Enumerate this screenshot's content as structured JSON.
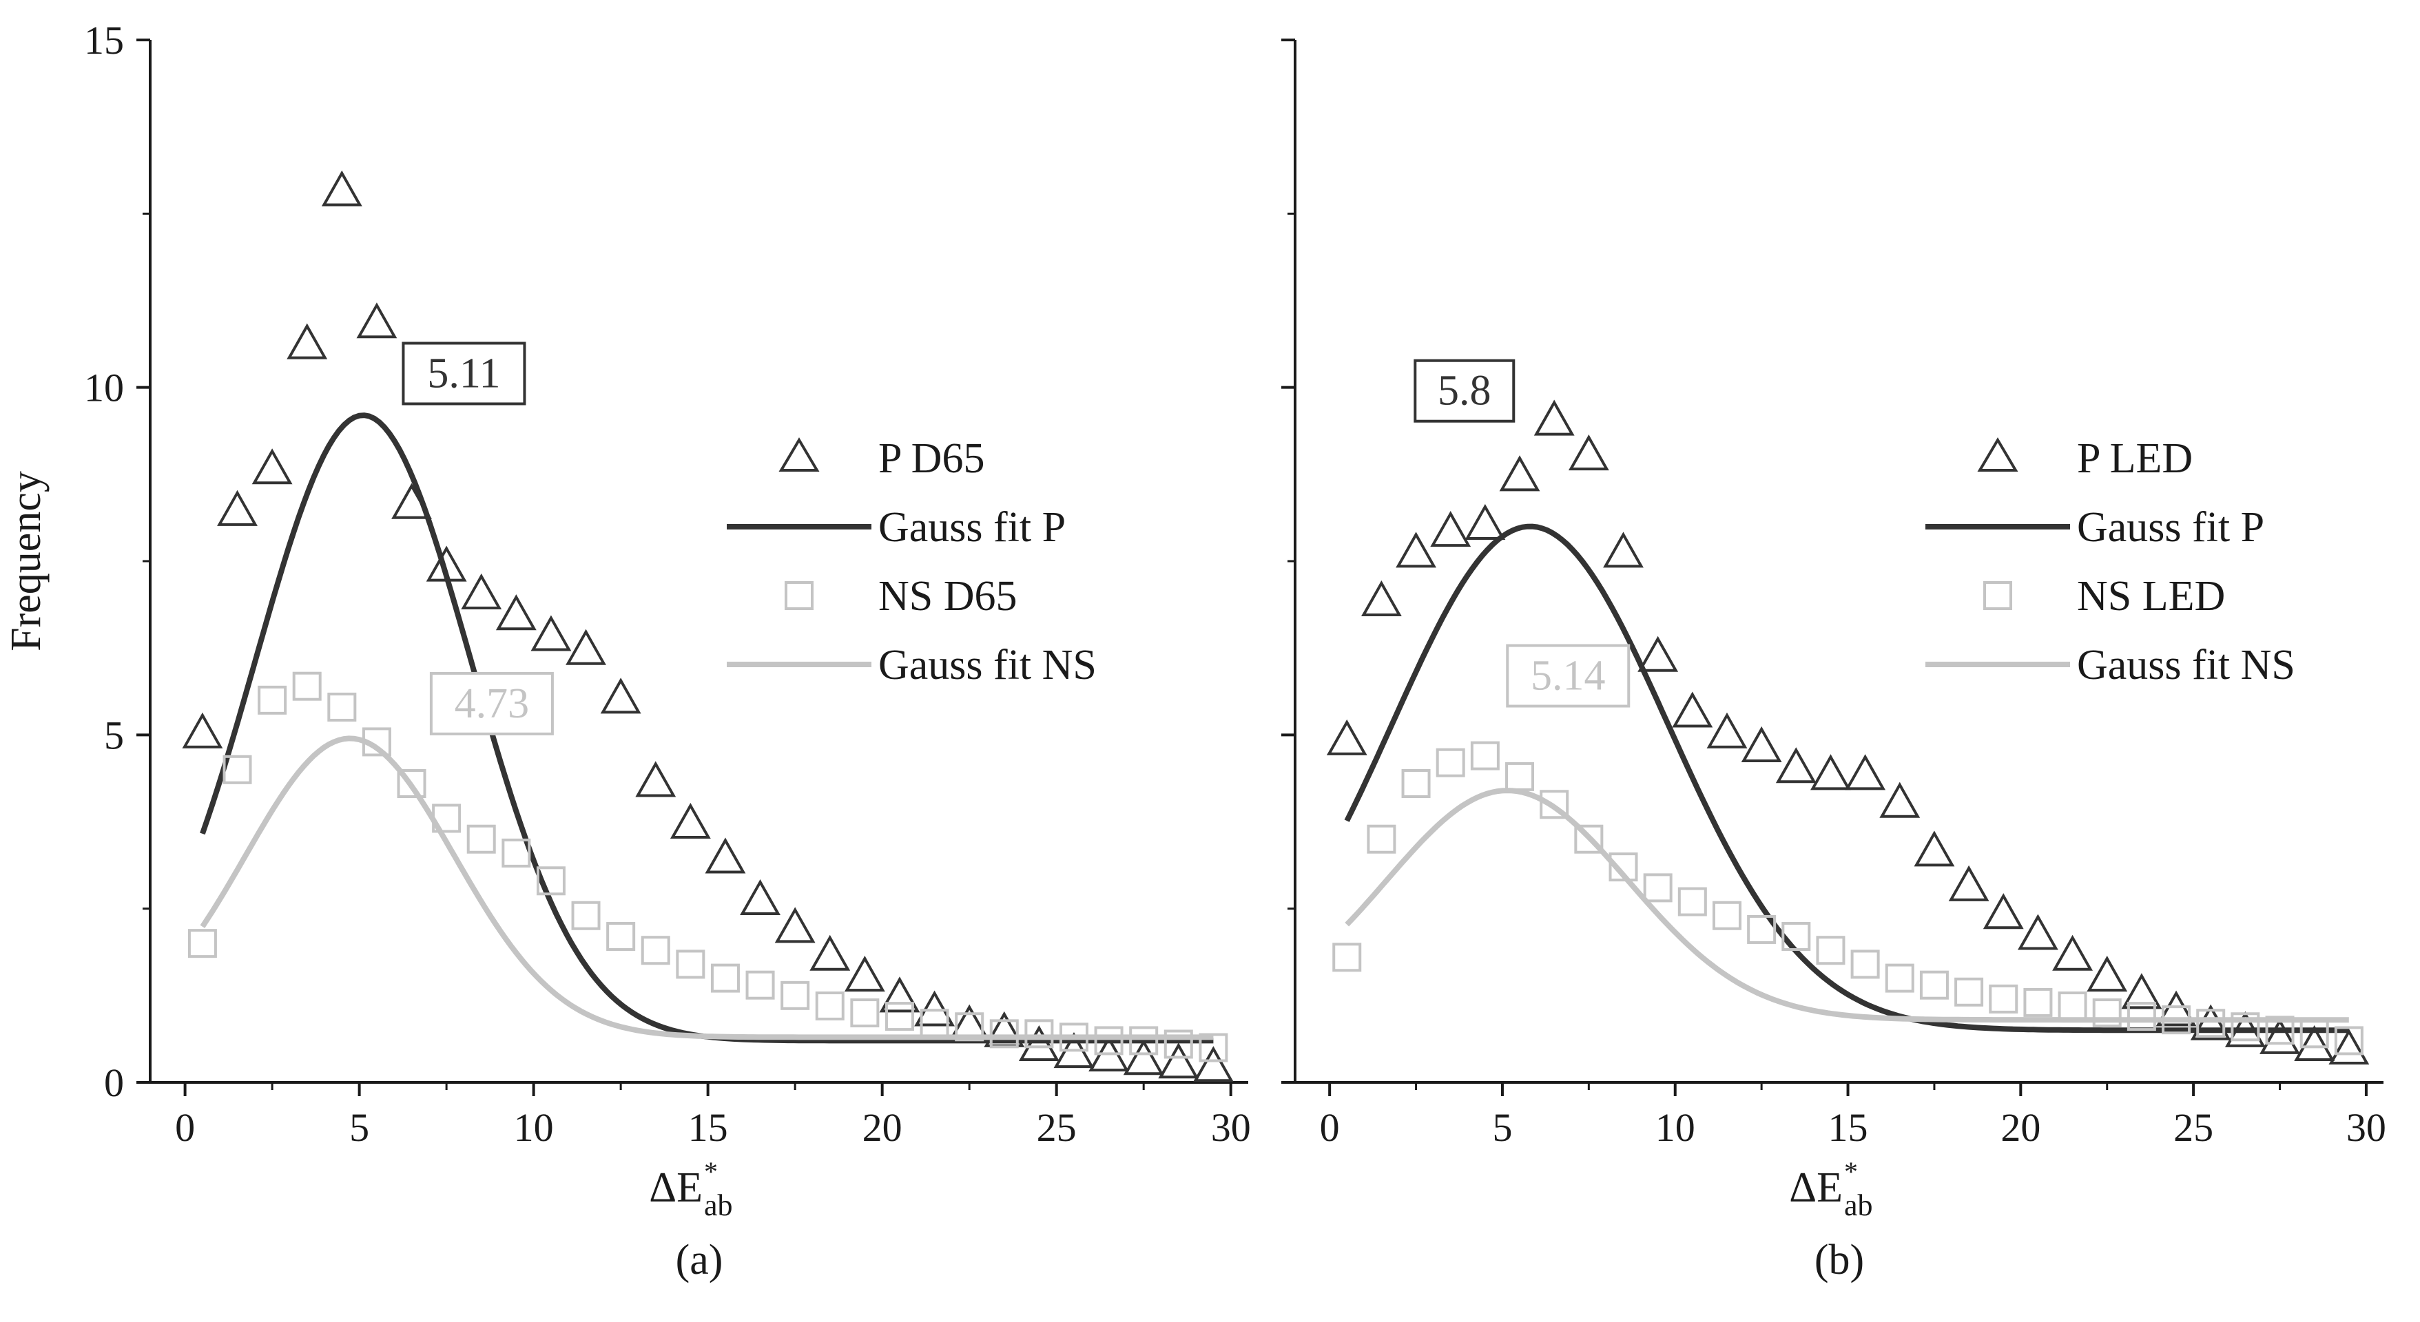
{
  "chart_data": [
    {
      "type": "scatter",
      "panel_label": "(a)",
      "xlabel": "ΔE",
      "xlabel_sup": "*",
      "xlabel_sub": "ab",
      "ylabel": "Frequency",
      "xlim": [
        -1,
        30.5
      ],
      "ylim": [
        0,
        15
      ],
      "xticks": [
        "0",
        "5",
        "10",
        "15",
        "20",
        "25",
        "30"
      ],
      "yticks": [
        "0",
        "5",
        "10",
        "15"
      ],
      "series": [
        {
          "name": "P D65",
          "kind": "scatter",
          "marker": "triangle",
          "color": "#333333",
          "x": [
            0.5,
            1.5,
            2.5,
            3.5,
            4.5,
            5.5,
            6.5,
            7.5,
            8.5,
            9.5,
            10.5,
            11.5,
            12.5,
            13.5,
            14.5,
            15.5,
            16.5,
            17.5,
            18.5,
            19.5,
            20.5,
            21.5,
            22.5,
            23.5,
            24.5,
            25.5,
            26.5,
            27.5,
            28.5,
            29.5
          ],
          "y": [
            5.0,
            8.2,
            8.8,
            10.6,
            12.8,
            10.9,
            8.3,
            7.4,
            7.0,
            6.7,
            6.4,
            6.2,
            5.5,
            4.3,
            3.7,
            3.2,
            2.6,
            2.2,
            1.8,
            1.5,
            1.2,
            1.0,
            0.8,
            0.7,
            0.5,
            0.4,
            0.35,
            0.3,
            0.25,
            0.2
          ]
        },
        {
          "name": "Gauss fit P",
          "kind": "line",
          "color": "#333333",
          "fit": {
            "y0": 0.6,
            "A": 9.0,
            "xc": 5.11,
            "w": 6.2
          }
        },
        {
          "name": "NS D65",
          "kind": "scatter",
          "marker": "square",
          "color": "#c4c4c4",
          "x": [
            0.5,
            1.5,
            2.5,
            3.5,
            4.5,
            5.5,
            6.5,
            7.5,
            8.5,
            9.5,
            10.5,
            11.5,
            12.5,
            13.5,
            14.5,
            15.5,
            16.5,
            17.5,
            18.5,
            19.5,
            20.5,
            21.5,
            22.5,
            23.5,
            24.5,
            25.5,
            26.5,
            27.5,
            28.5,
            29.5
          ],
          "y": [
            2.0,
            4.5,
            5.5,
            5.7,
            5.4,
            4.9,
            4.3,
            3.8,
            3.5,
            3.3,
            2.9,
            2.4,
            2.1,
            1.9,
            1.7,
            1.5,
            1.4,
            1.25,
            1.1,
            1.0,
            0.95,
            0.85,
            0.8,
            0.7,
            0.7,
            0.65,
            0.6,
            0.6,
            0.55,
            0.5
          ]
        },
        {
          "name": "Gauss fit NS",
          "kind": "line",
          "color": "#c4c4c4",
          "fit": {
            "y0": 0.65,
            "A": 4.3,
            "xc": 4.73,
            "w": 6.0
          }
        }
      ],
      "annotations": [
        {
          "text": "5.11",
          "x": 8.0,
          "y": 10.2,
          "color": "#333333"
        },
        {
          "text": "4.73",
          "x": 8.8,
          "y": 5.45,
          "color": "#c4c4c4"
        }
      ]
    },
    {
      "type": "scatter",
      "panel_label": "(b)",
      "xlabel": "ΔE",
      "xlabel_sup": "*",
      "xlabel_sub": "ab",
      "ylabel": "",
      "xlim": [
        -1,
        30.5
      ],
      "ylim": [
        0,
        15
      ],
      "xticks": [
        "0",
        "5",
        "10",
        "15",
        "20",
        "25",
        "30"
      ],
      "yticks": [
        "0",
        "5",
        "10",
        "15"
      ],
      "series": [
        {
          "name": "P LED",
          "kind": "scatter",
          "marker": "triangle",
          "color": "#333333",
          "x": [
            0.5,
            1.5,
            2.5,
            3.5,
            4.5,
            5.5,
            6.5,
            7.5,
            8.5,
            9.5,
            10.5,
            11.5,
            12.5,
            13.5,
            14.5,
            15.5,
            16.5,
            17.5,
            18.5,
            19.5,
            20.5,
            21.5,
            22.5,
            23.5,
            24.5,
            25.5,
            26.5,
            27.5,
            28.5,
            29.5
          ],
          "y": [
            4.9,
            6.9,
            7.6,
            7.9,
            8.0,
            8.7,
            9.5,
            9.0,
            7.6,
            6.1,
            5.3,
            5.0,
            4.8,
            4.5,
            4.4,
            4.4,
            4.0,
            3.3,
            2.8,
            2.4,
            2.1,
            1.8,
            1.5,
            1.25,
            1.0,
            0.8,
            0.7,
            0.6,
            0.5,
            0.45
          ]
        },
        {
          "name": "Gauss fit P",
          "kind": "line",
          "color": "#333333",
          "fit": {
            "y0": 0.75,
            "A": 7.25,
            "xc": 5.8,
            "w": 8.0
          }
        },
        {
          "name": "NS LED",
          "kind": "scatter",
          "marker": "square",
          "color": "#c4c4c4",
          "x": [
            0.5,
            1.5,
            2.5,
            3.5,
            4.5,
            5.5,
            6.5,
            7.5,
            8.5,
            9.5,
            10.5,
            11.5,
            12.5,
            13.5,
            14.5,
            15.5,
            16.5,
            17.5,
            18.5,
            19.5,
            20.5,
            21.5,
            22.5,
            23.5,
            24.5,
            25.5,
            26.5,
            27.5,
            28.5,
            29.5
          ],
          "y": [
            1.8,
            3.5,
            4.3,
            4.6,
            4.7,
            4.4,
            4.0,
            3.5,
            3.1,
            2.8,
            2.6,
            2.4,
            2.2,
            2.1,
            1.9,
            1.7,
            1.5,
            1.4,
            1.3,
            1.2,
            1.15,
            1.1,
            1.0,
            0.95,
            0.9,
            0.85,
            0.8,
            0.75,
            0.7,
            0.6
          ]
        },
        {
          "name": "Gauss fit NS",
          "kind": "line",
          "color": "#c4c4c4",
          "fit": {
            "y0": 0.9,
            "A": 3.3,
            "xc": 5.14,
            "w": 7.0
          }
        }
      ],
      "annotations": [
        {
          "text": "5.8",
          "x": 3.9,
          "y": 9.95,
          "color": "#333333"
        },
        {
          "text": "5.14",
          "x": 6.9,
          "y": 5.85,
          "color": "#c4c4c4"
        }
      ]
    }
  ]
}
